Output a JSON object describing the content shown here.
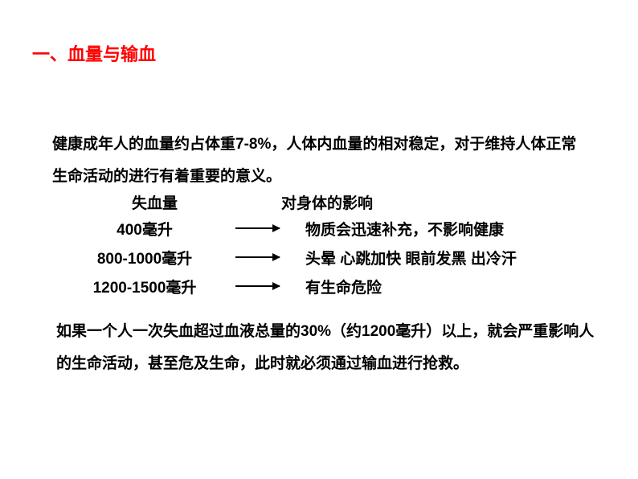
{
  "title": {
    "text": "一、血量与输血",
    "color": "#ff0000"
  },
  "intro": {
    "text": "健康成年人的血量约占体重7-8%，人体内血量的相对稳定，对于维持人体正常生命活动的进行有着重要的意义。"
  },
  "table": {
    "header_left": "失血量",
    "header_right": "对身体的影响",
    "rows": [
      {
        "amount": "400毫升",
        "effect": "物质会迅速补充，不影响健康"
      },
      {
        "amount": "800-1000毫升",
        "effect": "头晕  心跳加快  眼前发黑  出冷汗"
      },
      {
        "amount": "1200-1500毫升",
        "effect": "有生命危险"
      }
    ]
  },
  "conclusion": {
    "text": "如果一个人一次失血超过血液总量的30%（约1200毫升）以上，就会严重影响人的生命活动，甚至危及生命，此时就必须通过输血进行抢救。"
  },
  "styling": {
    "title_fontsize": 22,
    "body_fontsize": 19,
    "title_color": "#ff0000",
    "body_color": "#000000",
    "background_color": "#ffffff",
    "arrow_color": "#000000",
    "line_height": 2.1
  }
}
